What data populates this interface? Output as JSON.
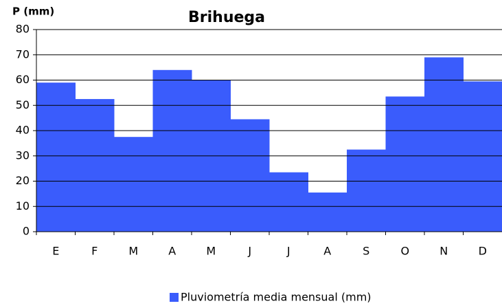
{
  "chart_data": {
    "type": "bar",
    "title": "Brihuega",
    "y_label": "P (mm)",
    "categories": [
      "E",
      "F",
      "M",
      "A",
      "M",
      "J",
      "J",
      "A",
      "S",
      "O",
      "N",
      "D"
    ],
    "series": [
      {
        "name": "Pluviometría media mensual (mm)",
        "color": "#3a5cfc",
        "values": [
          59,
          52.5,
          37.5,
          64,
          60,
          44.5,
          23.5,
          15.5,
          32.5,
          53.5,
          69,
          59.5
        ]
      }
    ],
    "ylim": [
      0,
      80
    ],
    "yticks": [
      0,
      10,
      20,
      30,
      40,
      50,
      60,
      70,
      80
    ],
    "grid": true,
    "legend": "bottom"
  }
}
